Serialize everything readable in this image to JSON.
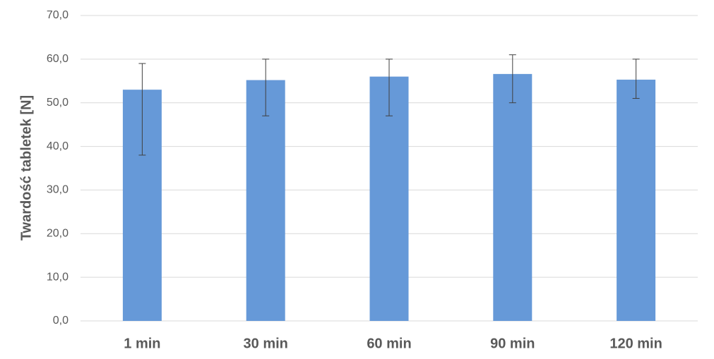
{
  "chart_data": {
    "type": "bar",
    "y_label": "Twardość tabletek [N]",
    "categories": [
      "1 min",
      "30 min",
      "60 min",
      "90 min",
      "120 min"
    ],
    "values": [
      53.0,
      55.2,
      56.0,
      56.6,
      55.3
    ],
    "errors_minus": [
      15.0,
      8.2,
      9.0,
      6.6,
      4.3
    ],
    "errors_plus": [
      6.0,
      4.8,
      4.0,
      4.4,
      4.7
    ],
    "color": "#6699d8",
    "ylim": [
      0,
      70
    ],
    "yticks": [
      {
        "value": 0,
        "label": "0,0"
      },
      {
        "value": 10,
        "label": "10,0"
      },
      {
        "value": 20,
        "label": "20,0"
      },
      {
        "value": 30,
        "label": "30,0"
      },
      {
        "value": 40,
        "label": "40,0"
      },
      {
        "value": 50,
        "label": "50,0"
      },
      {
        "value": 60,
        "label": "60,0"
      },
      {
        "value": 70,
        "label": "70,0"
      }
    ],
    "grid": true
  }
}
